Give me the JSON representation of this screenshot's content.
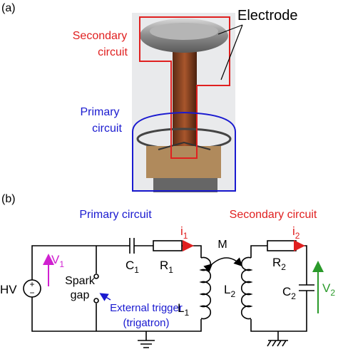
{
  "panel_a": {
    "label": "(a)",
    "electrode": "Electrode",
    "secondary": [
      "Secondary",
      "circuit"
    ],
    "primary": [
      "Primary",
      "circuit"
    ]
  },
  "panel_b": {
    "label": "(b)",
    "primary_title": "Primary circuit",
    "secondary_title": "Secondary circuit",
    "hv": "HV",
    "v1": {
      "text": "V",
      "sub": "1"
    },
    "spark": [
      "Spark",
      "gap"
    ],
    "trigger": [
      "External trigger",
      "(trigatron)"
    ],
    "c1": {
      "text": "C",
      "sub": "1"
    },
    "r1": {
      "text": "R",
      "sub": "1"
    },
    "i1": {
      "text": "i",
      "sub": "1"
    },
    "l1": {
      "text": "L",
      "sub": "1"
    },
    "m": "M",
    "l2": {
      "text": "L",
      "sub": "2"
    },
    "r2": {
      "text": "R",
      "sub": "2"
    },
    "i2": {
      "text": "i",
      "sub": "2"
    },
    "c2": {
      "text": "C",
      "sub": "2"
    },
    "v2": {
      "text": "V",
      "sub": "2"
    }
  }
}
